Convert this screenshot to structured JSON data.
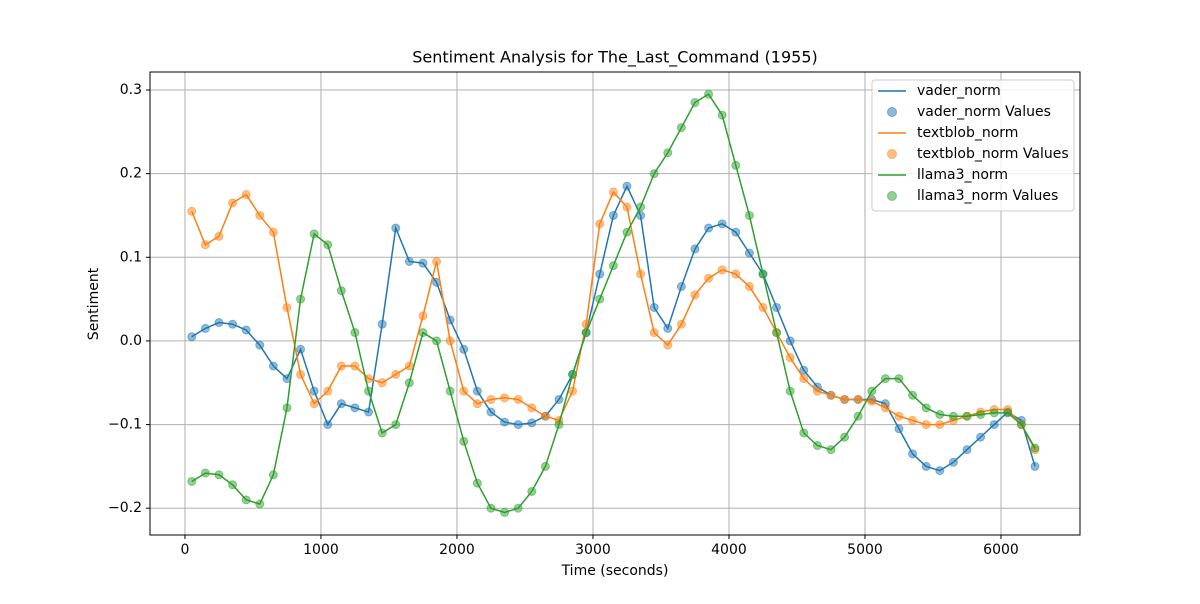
{
  "chart_data": {
    "type": "line",
    "title": "Sentiment Analysis for The_Last_Command (1955)",
    "x_label": "Time (seconds)",
    "y_label": "Sentiment",
    "x": [
      50,
      150,
      250,
      350,
      450,
      550,
      650,
      750,
      850,
      950,
      1050,
      1150,
      1250,
      1350,
      1450,
      1550,
      1650,
      1750,
      1850,
      1950,
      2050,
      2150,
      2250,
      2350,
      2450,
      2550,
      2650,
      2750,
      2850,
      2950,
      3050,
      3150,
      3250,
      3350,
      3450,
      3550,
      3650,
      3750,
      3850,
      3950,
      4050,
      4150,
      4250,
      4350,
      4450,
      4550,
      4650,
      4750,
      4850,
      4950,
      5050,
      5150,
      5250,
      5350,
      5450,
      5550,
      5650,
      5750,
      5850,
      5950,
      6050,
      6150,
      6250
    ],
    "series": [
      {
        "name": "vader_norm",
        "scatter_name": "vader_norm Values",
        "color": "#1f77b4",
        "values": [
          0.005,
          0.015,
          0.022,
          0.02,
          0.013,
          -0.005,
          -0.03,
          -0.045,
          -0.01,
          -0.06,
          -0.1,
          -0.075,
          -0.08,
          -0.085,
          0.02,
          0.135,
          0.095,
          0.093,
          0.07,
          0.025,
          -0.01,
          -0.06,
          -0.085,
          -0.097,
          -0.1,
          -0.098,
          -0.09,
          -0.07,
          -0.04,
          0.01,
          0.08,
          0.15,
          0.185,
          0.15,
          0.04,
          0.015,
          0.065,
          0.11,
          0.135,
          0.14,
          0.13,
          0.105,
          0.08,
          0.04,
          0.0,
          -0.035,
          -0.055,
          -0.065,
          -0.07,
          -0.07,
          -0.07,
          -0.075,
          -0.105,
          -0.135,
          -0.15,
          -0.155,
          -0.145,
          -0.13,
          -0.115,
          -0.1,
          -0.085,
          -0.095,
          -0.15
        ]
      },
      {
        "name": "textblob_norm",
        "scatter_name": "textblob_norm Values",
        "color": "#ff7f0e",
        "values": [
          0.155,
          0.115,
          0.125,
          0.165,
          0.175,
          0.15,
          0.13,
          0.04,
          -0.04,
          -0.075,
          -0.06,
          -0.03,
          -0.03,
          -0.045,
          -0.05,
          -0.04,
          -0.03,
          0.03,
          0.095,
          0.0,
          -0.06,
          -0.075,
          -0.07,
          -0.068,
          -0.07,
          -0.08,
          -0.09,
          -0.095,
          -0.06,
          0.02,
          0.14,
          0.178,
          0.16,
          0.08,
          0.01,
          -0.005,
          0.02,
          0.055,
          0.075,
          0.085,
          0.08,
          0.065,
          0.04,
          0.01,
          -0.02,
          -0.045,
          -0.06,
          -0.065,
          -0.07,
          -0.07,
          -0.072,
          -0.08,
          -0.09,
          -0.095,
          -0.1,
          -0.1,
          -0.095,
          -0.09,
          -0.085,
          -0.082,
          -0.082,
          -0.1,
          -0.13
        ]
      },
      {
        "name": "llama3_norm",
        "scatter_name": "llama3_norm Values",
        "color": "#2ca02c",
        "values": [
          -0.168,
          -0.158,
          -0.16,
          -0.172,
          -0.19,
          -0.195,
          -0.16,
          -0.08,
          0.05,
          0.128,
          0.115,
          0.06,
          0.01,
          -0.06,
          -0.11,
          -0.1,
          -0.05,
          0.01,
          0.0,
          -0.06,
          -0.12,
          -0.17,
          -0.2,
          -0.205,
          -0.2,
          -0.18,
          -0.15,
          -0.1,
          -0.04,
          0.01,
          0.05,
          0.09,
          0.13,
          0.16,
          0.2,
          0.225,
          0.255,
          0.285,
          0.295,
          0.27,
          0.21,
          0.15,
          0.08,
          0.01,
          -0.06,
          -0.11,
          -0.125,
          -0.13,
          -0.115,
          -0.09,
          -0.06,
          -0.045,
          -0.045,
          -0.065,
          -0.08,
          -0.088,
          -0.09,
          -0.09,
          -0.088,
          -0.086,
          -0.086,
          -0.1,
          -0.128
        ]
      }
    ],
    "xlim": [
      -257,
      6581
    ],
    "ylim": [
      -0.232,
      0.3215
    ],
    "xticks": [
      0,
      1000,
      2000,
      3000,
      4000,
      5000,
      6000
    ],
    "yticks": [
      {
        "value": -0.2,
        "label": "−0.2"
      },
      {
        "value": -0.1,
        "label": "−0.1"
      },
      {
        "value": 0,
        "label": "0.0"
      },
      0.1,
      0.2,
      0.3
    ],
    "grid": true,
    "legend": "upper right"
  }
}
